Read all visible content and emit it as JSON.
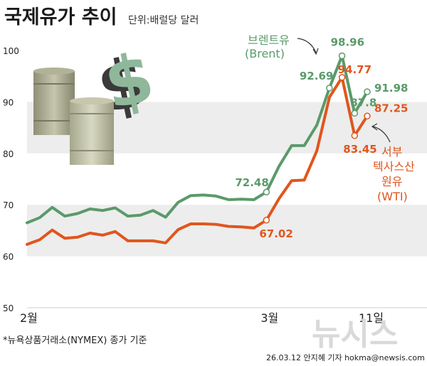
{
  "header": {
    "title": "국제유가 추이",
    "unit": "단위:배럴당 달러"
  },
  "footnote": "*뉴욕상품거래소(NYMEX) 종가 기준",
  "credit": "26.03.12 안지혜 기자 hokma@newsis.com",
  "watermark": "뉴시스",
  "colors": {
    "brent": "#5a9a6a",
    "wti": "#e0561e",
    "band": "#ededed"
  },
  "illustration": {
    "icons": [
      "dollar-sign-icon",
      "oil-barrel-icon"
    ]
  },
  "chart_data": {
    "type": "line",
    "title": "국제유가 추이",
    "ylabel": "",
    "xlabel": "",
    "ylim": [
      50,
      100
    ],
    "yticks": [
      "100",
      "90",
      "80",
      "70",
      "60",
      "50"
    ],
    "xticks": [
      "2월",
      "3월",
      "11일"
    ],
    "grid": "alternating horizontal bands",
    "series": [
      {
        "name": "브렌트유",
        "name_line2": "(Brent)",
        "values": [
          66.5,
          67.5,
          69.5,
          67.8,
          68.3,
          69.2,
          68.9,
          69.4,
          67.8,
          68.0,
          68.9,
          67.6,
          70.5,
          71.8,
          71.9,
          71.7,
          71.0,
          71.1,
          71.0,
          72.48,
          77.5,
          81.5,
          81.5,
          85.5,
          92.69,
          98.96,
          87.8,
          91.98
        ]
      },
      {
        "name": "서부",
        "name_line2": "텍사스산",
        "name_line3": "원유",
        "name_line4": "(WTI)",
        "values": [
          62.3,
          63.2,
          65.1,
          63.5,
          63.7,
          64.5,
          64.1,
          64.8,
          63.0,
          63.0,
          63.0,
          62.6,
          65.2,
          66.3,
          66.3,
          66.2,
          65.8,
          65.7,
          65.5,
          67.02,
          71.2,
          74.7,
          74.8,
          80.5,
          90.9,
          94.77,
          83.45,
          87.25
        ]
      }
    ],
    "annotations": [
      {
        "series": 0,
        "index": 19,
        "label": "72.48"
      },
      {
        "series": 0,
        "index": 24,
        "label": "92.69"
      },
      {
        "series": 0,
        "index": 25,
        "label": "98.96"
      },
      {
        "series": 0,
        "index": 26,
        "label": "87.8"
      },
      {
        "series": 0,
        "index": 27,
        "label": "91.98"
      },
      {
        "series": 1,
        "index": 19,
        "label": "67.02"
      },
      {
        "series": 1,
        "index": 25,
        "label": "94.77"
      },
      {
        "series": 1,
        "index": 26,
        "label": "83.45"
      },
      {
        "series": 1,
        "index": 27,
        "label": "87.25"
      }
    ]
  }
}
